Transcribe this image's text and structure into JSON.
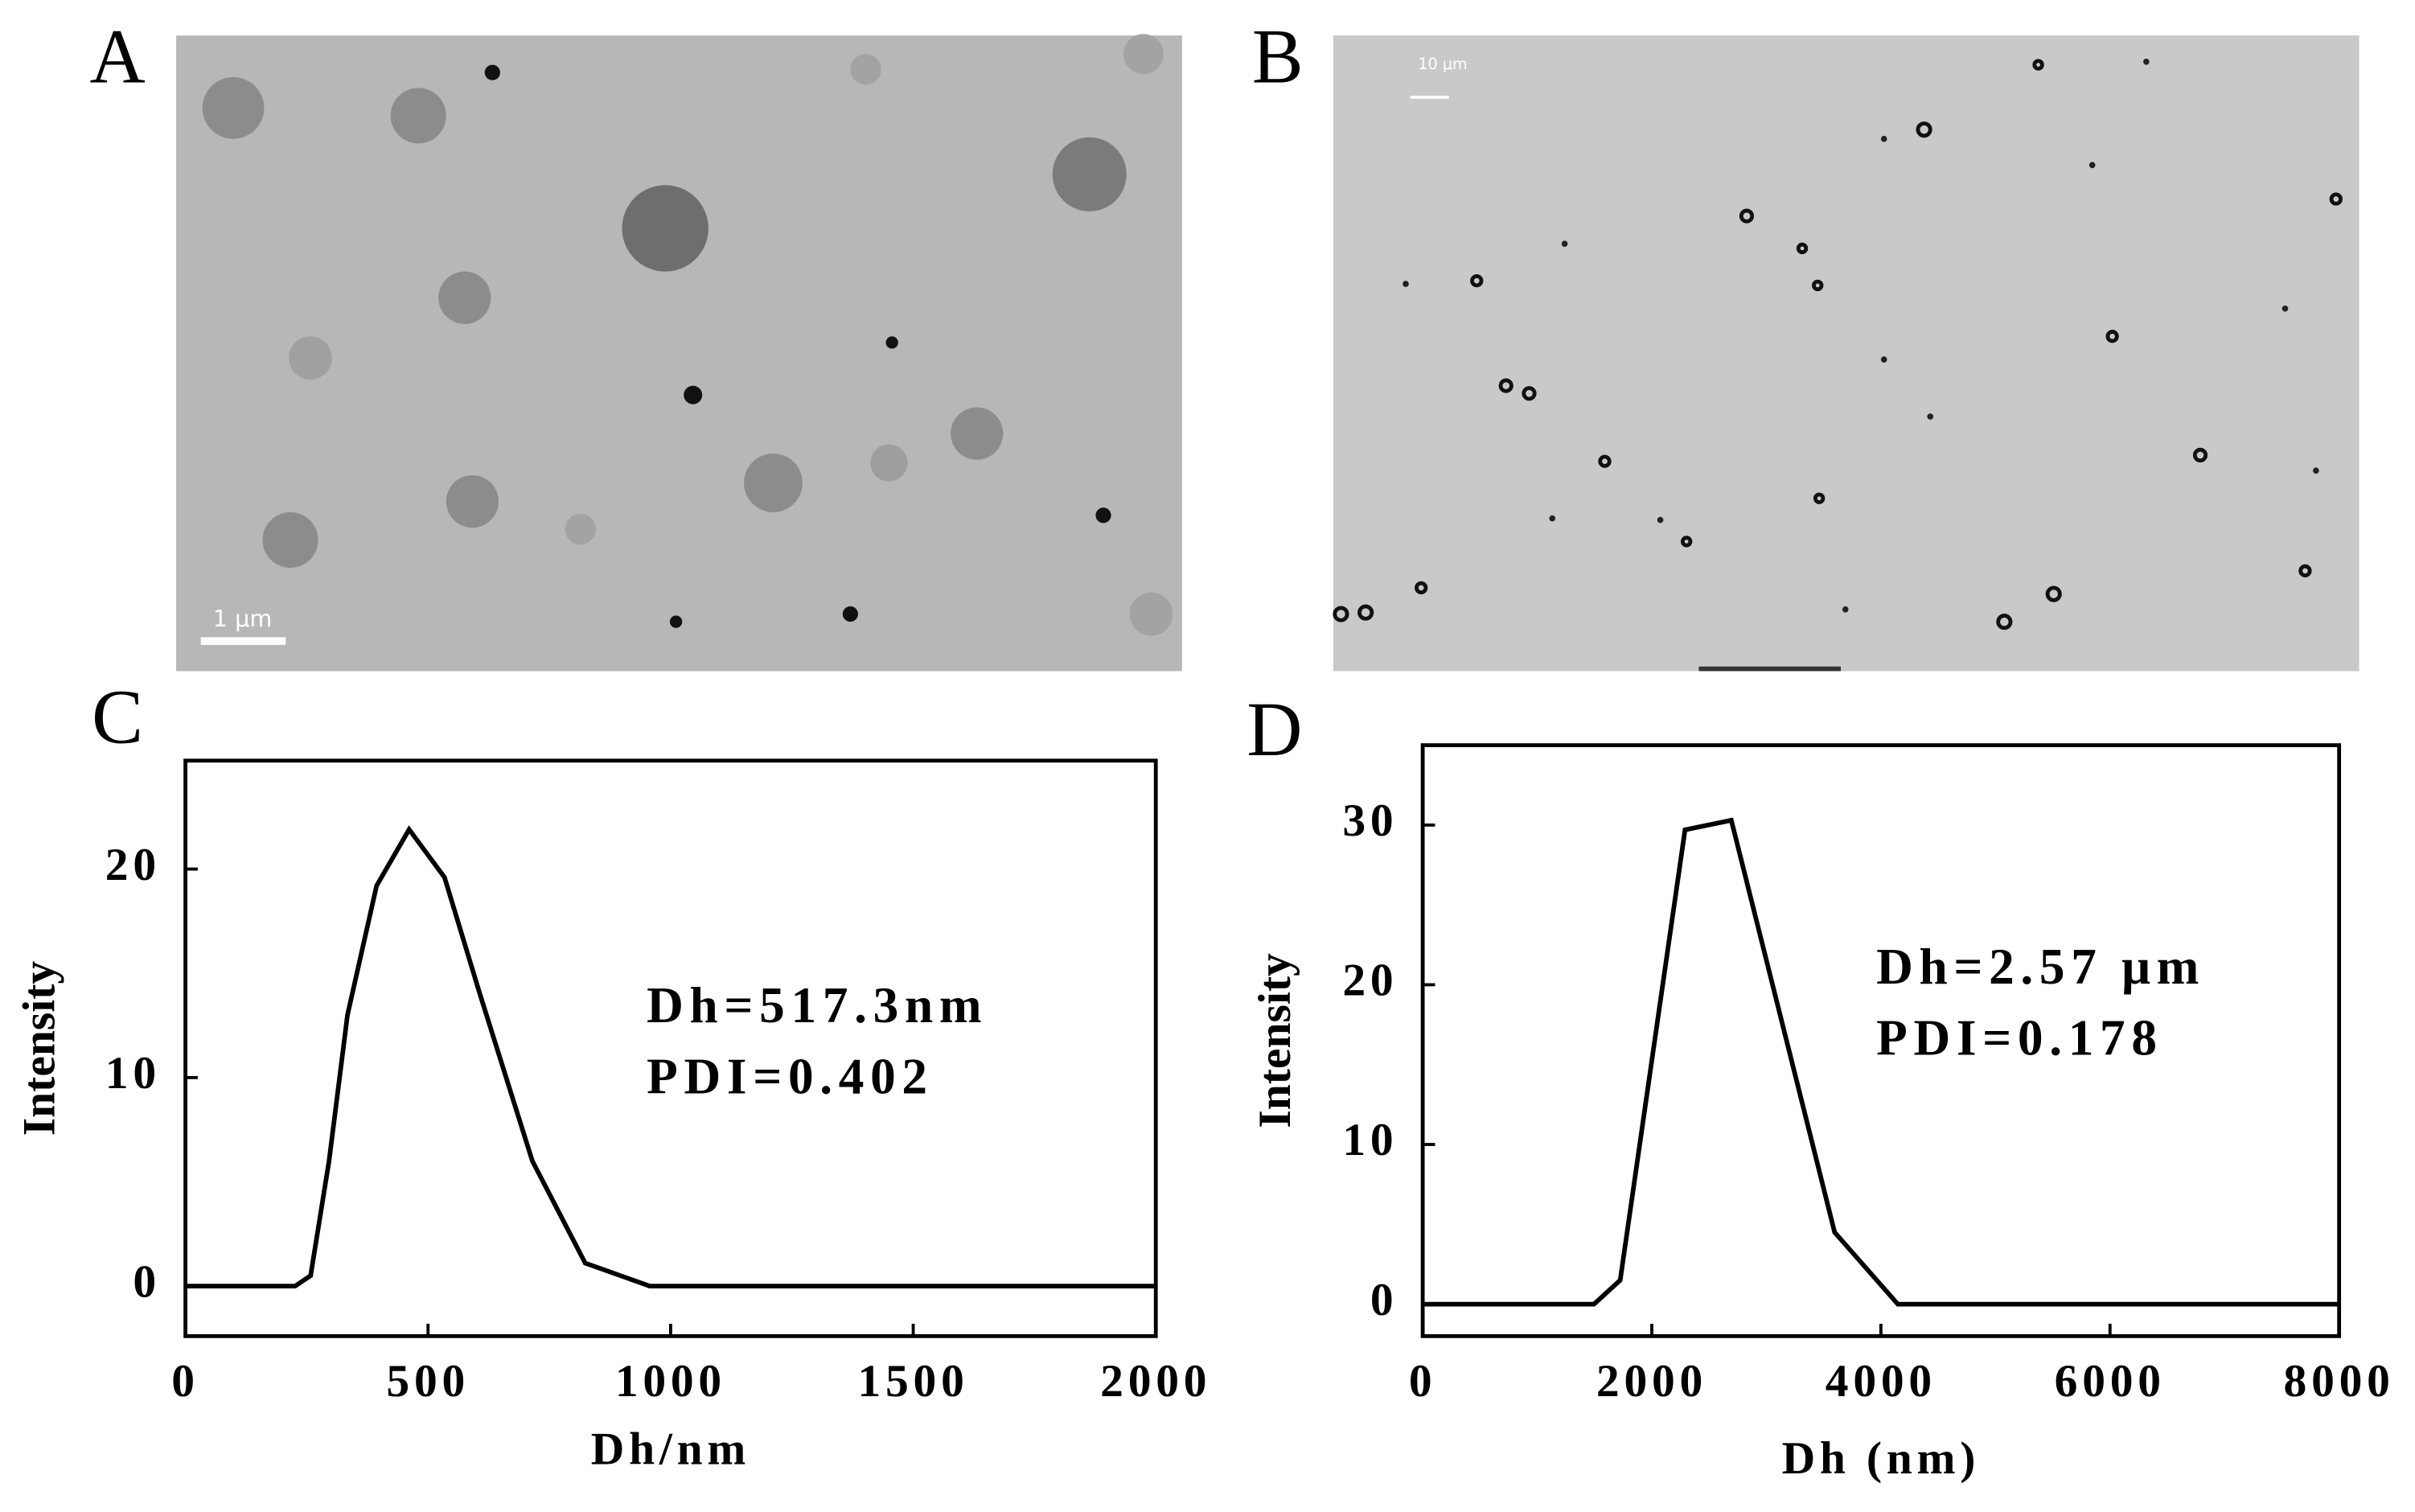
{
  "images": [
    {
      "label": "A",
      "scale_bar": "1 μm"
    },
    {
      "label": "B",
      "scale_bar": "10 μm"
    }
  ],
  "chart_data": [
    {
      "type": "line",
      "panel_label": "C",
      "xlabel": "Dh/nm",
      "ylabel": "Intensity",
      "annotations": [
        "Dh=517.3nm",
        "PDI=0.402"
      ],
      "x": [
        0,
        226,
        258,
        296,
        334,
        394,
        461,
        534,
        607,
        715,
        824,
        957,
        2000
      ],
      "values": [
        0,
        0,
        0.5,
        6,
        13,
        19.2,
        21.9,
        19.6,
        14,
        6,
        1.1,
        0,
        0
      ],
      "color": "#000000",
      "xlim": [
        0,
        2000
      ],
      "xticks": [
        0,
        500,
        1000,
        1500,
        2000
      ],
      "ylim": [
        -2.4,
        25.2
      ],
      "yticks": [
        0,
        10,
        20
      ]
    },
    {
      "type": "line",
      "panel_label": "D",
      "xlabel": "Dh (nm)",
      "ylabel": "Intensity",
      "annotations": [
        "Dh=2.57 μm",
        "PDI=0.178"
      ],
      "x": [
        0,
        1495,
        1724,
        2290,
        2694,
        3596,
        4148,
        8000
      ],
      "values": [
        0,
        0,
        1.5,
        29.7,
        30.3,
        4.5,
        0,
        0
      ],
      "color": "#000000",
      "xlim": [
        0,
        8000
      ],
      "xticks": [
        0,
        2000,
        4000,
        6000,
        8000
      ],
      "ylim": [
        -2,
        35
      ],
      "yticks": [
        0,
        10,
        20,
        30
      ]
    }
  ]
}
